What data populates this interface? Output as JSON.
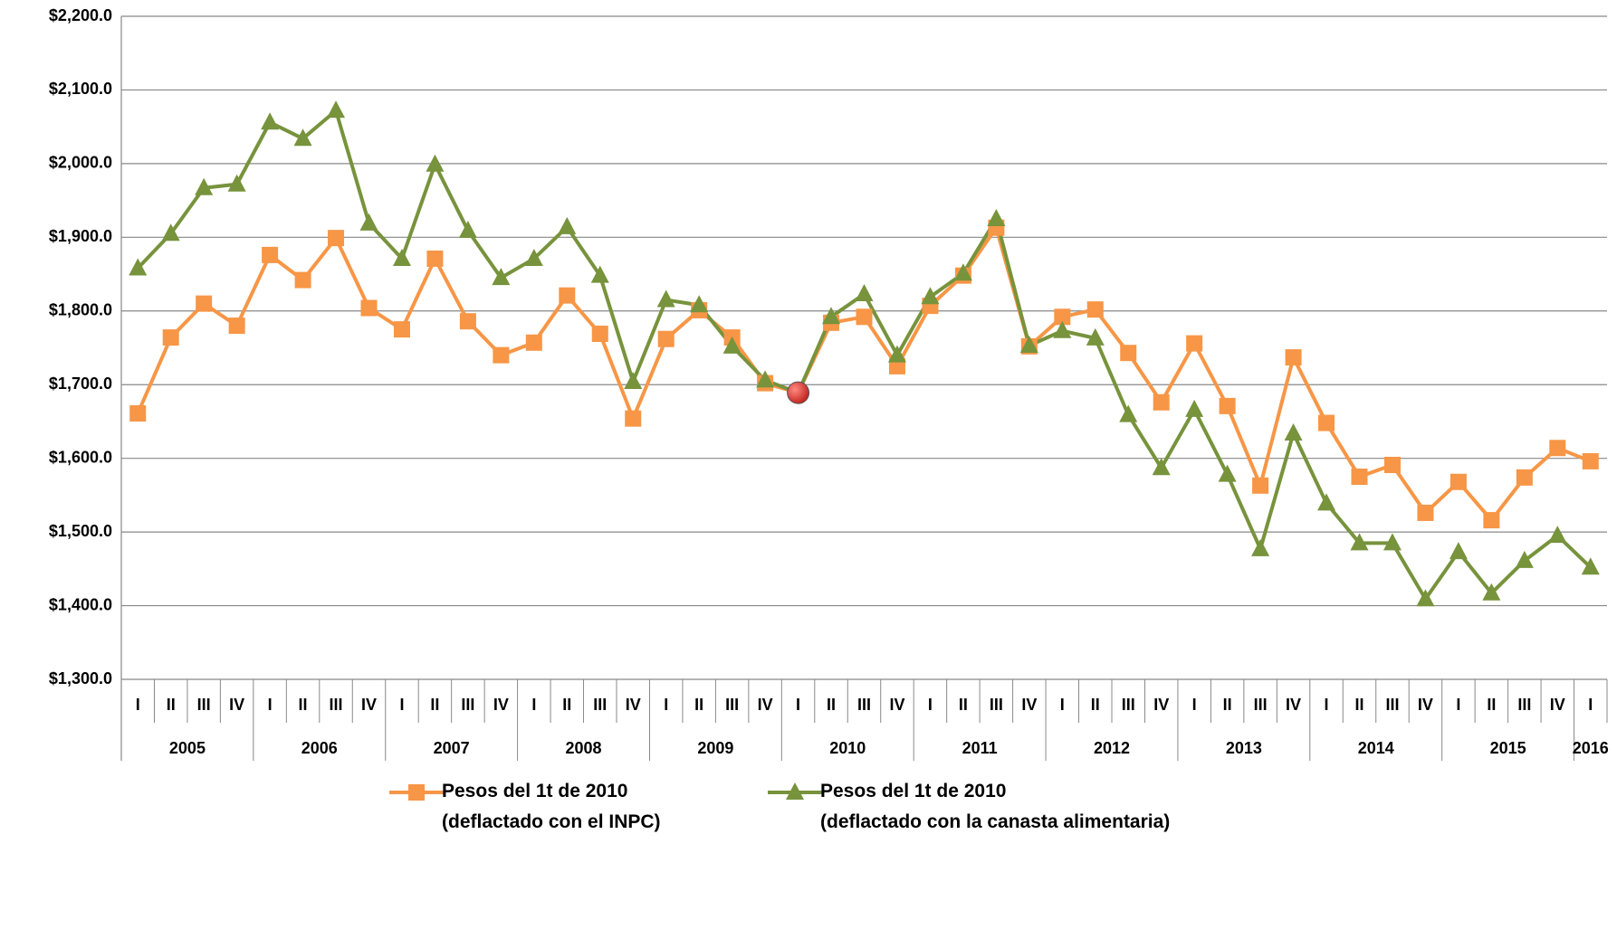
{
  "chart_data": {
    "type": "line",
    "categories": [
      "I",
      "II",
      "III",
      "IV",
      "I",
      "II",
      "III",
      "IV",
      "I",
      "II",
      "III",
      "IV",
      "I",
      "II",
      "III",
      "IV",
      "I",
      "II",
      "III",
      "IV",
      "I",
      "II",
      "III",
      "IV",
      "I",
      "II",
      "III",
      "IV",
      "I",
      "II",
      "III",
      "IV",
      "I",
      "II",
      "III",
      "IV",
      "I",
      "II",
      "III",
      "IV",
      "I",
      "II",
      "III",
      "IV",
      "I"
    ],
    "x_groups": [
      "2005",
      "2006",
      "2007",
      "2008",
      "2009",
      "2010",
      "2011",
      "2012",
      "2013",
      "2014",
      "2015",
      "2016"
    ],
    "series": [
      {
        "name": "Pesos del 1t de 2010\n(deflactado con el INPC)",
        "color": "#f79646",
        "marker": "square",
        "values": [
          1661,
          1764,
          1810,
          1780,
          1876,
          1842,
          1899,
          1804,
          1775,
          1871,
          1786,
          1740,
          1757,
          1821,
          1769,
          1654,
          1762,
          1801,
          1764,
          1702,
          1689,
          1784,
          1792,
          1725,
          1807,
          1848,
          1913,
          1752,
          1792,
          1802,
          1743,
          1676,
          1756,
          1671,
          1563,
          1737,
          1648,
          1575,
          1591,
          1526,
          1568,
          1516,
          1574,
          1614,
          1596
        ]
      },
      {
        "name": "Pesos del 1t de 2010\n(deflactado con la canasta alimentaria)",
        "color": "#77933c",
        "marker": "triangle",
        "values": [
          1858,
          1905,
          1967,
          1972,
          2056,
          2034,
          2072,
          1919,
          1871,
          1999,
          1909,
          1845,
          1871,
          1914,
          1848,
          1704,
          1815,
          1808,
          1752,
          1706,
          1689,
          1792,
          1823,
          1740,
          1819,
          1851,
          1925,
          1753,
          1773,
          1763,
          1659,
          1587,
          1666,
          1578,
          1477,
          1634,
          1539,
          1485,
          1485,
          1409,
          1473,
          1417,
          1461,
          1495,
          1452
        ]
      }
    ],
    "highlight_point": {
      "series": 0,
      "index": 20,
      "color": "#c0201c"
    },
    "ylim": [
      1300,
      2200
    ],
    "yticks": [
      {
        "value": 1300,
        "label": "$1,300.0"
      },
      {
        "value": 1400,
        "label": "$1,400.0"
      },
      {
        "value": 1500,
        "label": "$1,500.0"
      },
      {
        "value": 1600,
        "label": "$1,600.0"
      },
      {
        "value": 1700,
        "label": "$1,700.0"
      },
      {
        "value": 1800,
        "label": "$1,800.0"
      },
      {
        "value": 1900,
        "label": "$1,900.0"
      },
      {
        "value": 2000,
        "label": "$2,000.0"
      },
      {
        "value": 2100,
        "label": "$2,100.0"
      },
      {
        "value": 2200,
        "label": "$2,200.0"
      }
    ],
    "grid": true,
    "legend": "bottom"
  }
}
